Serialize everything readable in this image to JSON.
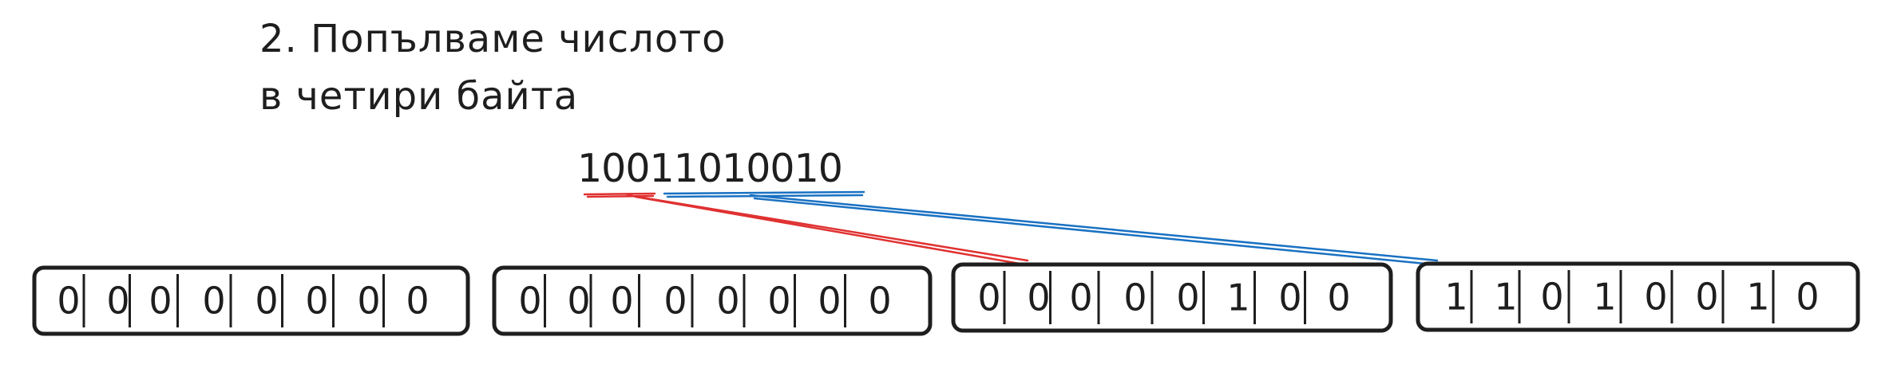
{
  "title": {
    "line1": "2. Попълваме числото",
    "line2": "в четири байта"
  },
  "binary_number": "10011010010",
  "connector_colors": {
    "high_bits": "#e03131",
    "low_bits": "#1971c2"
  },
  "bytes": [
    {
      "bits": [
        "0",
        "0",
        "0",
        "0",
        "0",
        "0",
        "0",
        "0"
      ]
    },
    {
      "bits": [
        "0",
        "0",
        "0",
        "0",
        "0",
        "0",
        "0",
        "0"
      ]
    },
    {
      "bits": [
        "0",
        "0",
        "0",
        "0",
        "0",
        "1",
        "0",
        "0"
      ]
    },
    {
      "bits": [
        "1",
        "1",
        "0",
        "1",
        "0",
        "0",
        "1",
        "0"
      ]
    }
  ]
}
